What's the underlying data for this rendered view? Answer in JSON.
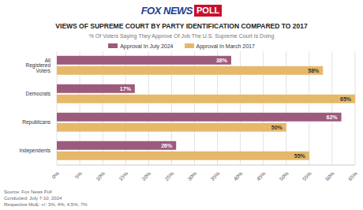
{
  "logo": {
    "brand": "FOX NEWS",
    "box": "POLL"
  },
  "chart_data": {
    "type": "bar",
    "orientation": "horizontal",
    "title": "VIEWS OF SUPREME COURT BY PARTY IDENTIFICATION COMPARED TO 2017",
    "subtitle": "% Of Voters Saying They Approve Of Job The U.S. Supreme Court Is Doing",
    "categories": [
      "All Registered Voters",
      "Democrats",
      "Republicans",
      "Independents"
    ],
    "series": [
      {
        "name": "Approval In July 2024",
        "color": "#9c5a7d",
        "values": [
          38,
          17,
          62,
          26
        ],
        "value_labels": [
          "38%",
          "17%",
          "62%",
          "26%"
        ]
      },
      {
        "name": "Approval In March 2017",
        "color": "#e6b86a",
        "values": [
          58,
          65,
          50,
          55
        ],
        "value_labels": [
          "58%",
          "65%",
          "50%",
          "55%"
        ]
      }
    ],
    "xlim": [
      0,
      65
    ],
    "xticks": [
      {
        "value": 0,
        "label": "0%"
      },
      {
        "value": 5,
        "label": "5%"
      },
      {
        "value": 10,
        "label": "10%"
      },
      {
        "value": 15,
        "label": "15%"
      },
      {
        "value": 20,
        "label": "20%"
      },
      {
        "value": 25,
        "label": "25%"
      },
      {
        "value": 30,
        "label": "30%"
      },
      {
        "value": 35,
        "label": "35%"
      },
      {
        "value": 40,
        "label": "40%"
      },
      {
        "value": 45,
        "label": "45%"
      },
      {
        "value": 50,
        "label": "50%"
      },
      {
        "value": 55,
        "label": "55%"
      },
      {
        "value": 60,
        "label": "60%"
      },
      {
        "value": 65,
        "label": "65%"
      }
    ],
    "grid": true,
    "legend": "top",
    "data_labels": true,
    "source": [
      "Source: Fox News Poll",
      "Conducted: July 7-10, 2024",
      "Respective MoE: +/- 3%, 4%, 4.5%, 7%"
    ]
  }
}
